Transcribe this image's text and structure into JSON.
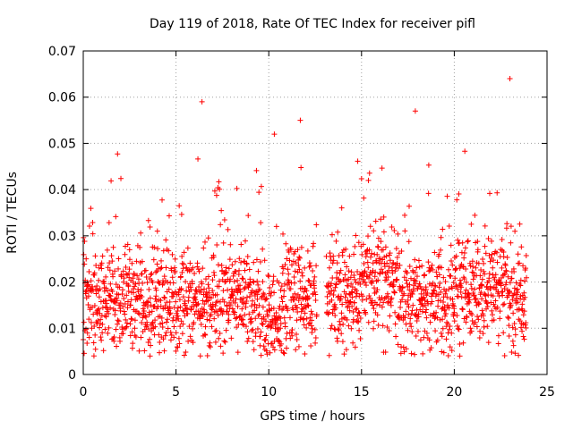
{
  "chart_data": {
    "type": "scatter",
    "title": "Day 119 of 2018, Rate Of TEC Index for receiver pifl",
    "xlabel": "GPS time / hours",
    "ylabel": "ROTI / TECUs",
    "xlim": [
      0,
      25
    ],
    "ylim": [
      0,
      0.07
    ],
    "xticks": [
      0,
      5,
      10,
      15,
      20,
      25
    ],
    "yticks": [
      0,
      0.01,
      0.02,
      0.03,
      0.04,
      0.05,
      0.06,
      0.07
    ],
    "xtick_labels": [
      "0",
      "5",
      "10",
      "15",
      "20",
      "25"
    ],
    "ytick_labels": [
      "0",
      "0.01",
      "0.02",
      "0.03",
      "0.04",
      "0.05",
      "0.06",
      "0.07"
    ],
    "grid": true,
    "marker": "+",
    "series_color": "#ff0000",
    "gap_hours": [
      12.6,
      13.1
    ],
    "notable_points": [
      {
        "x": 6.4,
        "y": 0.059
      },
      {
        "x": 11.7,
        "y": 0.055
      },
      {
        "x": 10.3,
        "y": 0.052
      },
      {
        "x": 17.9,
        "y": 0.057
      },
      {
        "x": 23.0,
        "y": 0.064
      },
      {
        "x": 3.6,
        "y": 0.004
      },
      {
        "x": 20.3,
        "y": 0.004
      }
    ],
    "range_x": [
      0,
      23.9
    ],
    "typical_y_range": [
      0.005,
      0.05
    ]
  }
}
